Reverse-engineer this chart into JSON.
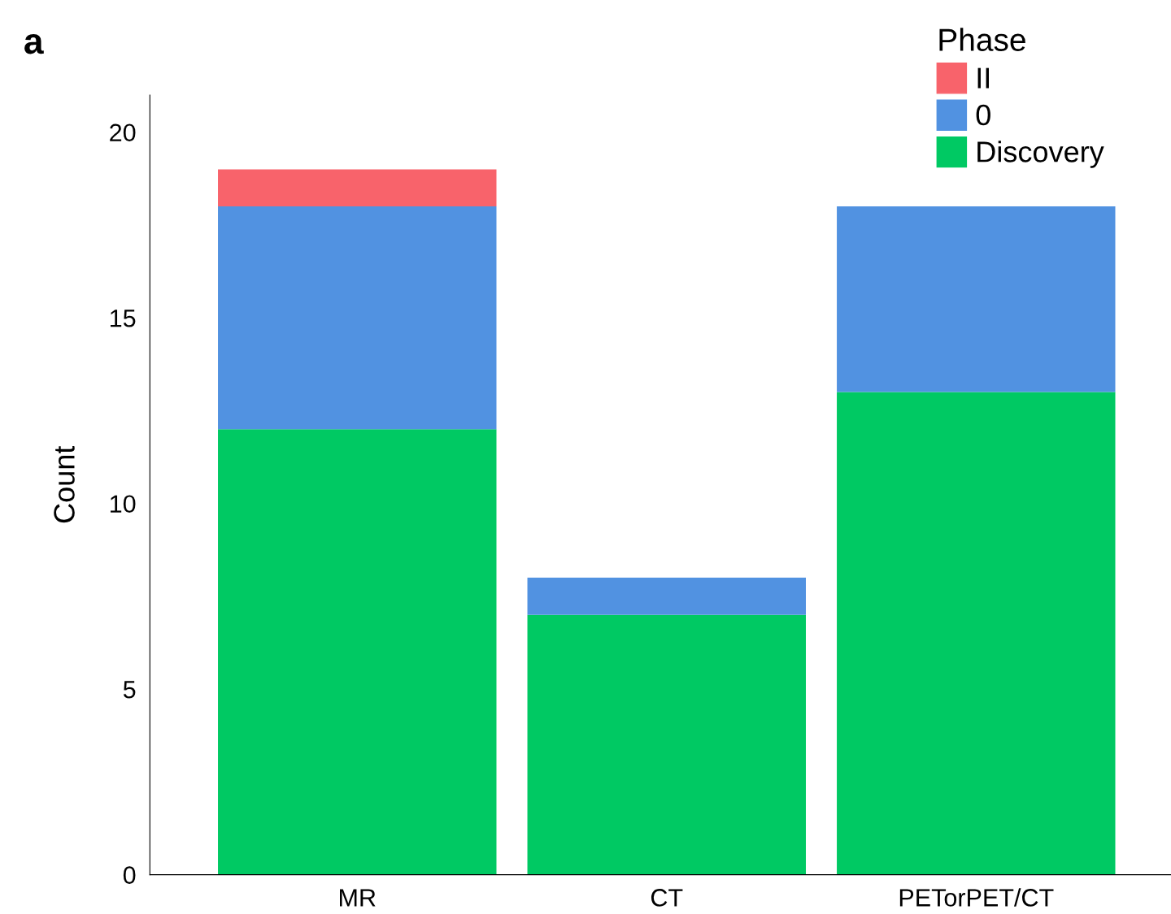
{
  "chart_data": {
    "type": "bar",
    "stacked": true,
    "ylabel": "Count",
    "legend_title": "Phase",
    "legend": "top right",
    "categories": [
      "MR",
      "CT",
      "PETorPET/CT"
    ],
    "series": [
      {
        "name": "Discovery",
        "color": "#00c963",
        "values": [
          12,
          7,
          13
        ]
      },
      {
        "name": "0",
        "color": "#5192e1",
        "values": [
          6,
          1,
          5
        ]
      },
      {
        "name": "II",
        "color": "#f8636b",
        "values": [
          1,
          0,
          0
        ]
      }
    ],
    "ylim": [
      0,
      21
    ],
    "yticks": [
      0,
      5,
      10,
      15,
      20
    ],
    "grid": false,
    "annotations": [
      "a"
    ]
  }
}
